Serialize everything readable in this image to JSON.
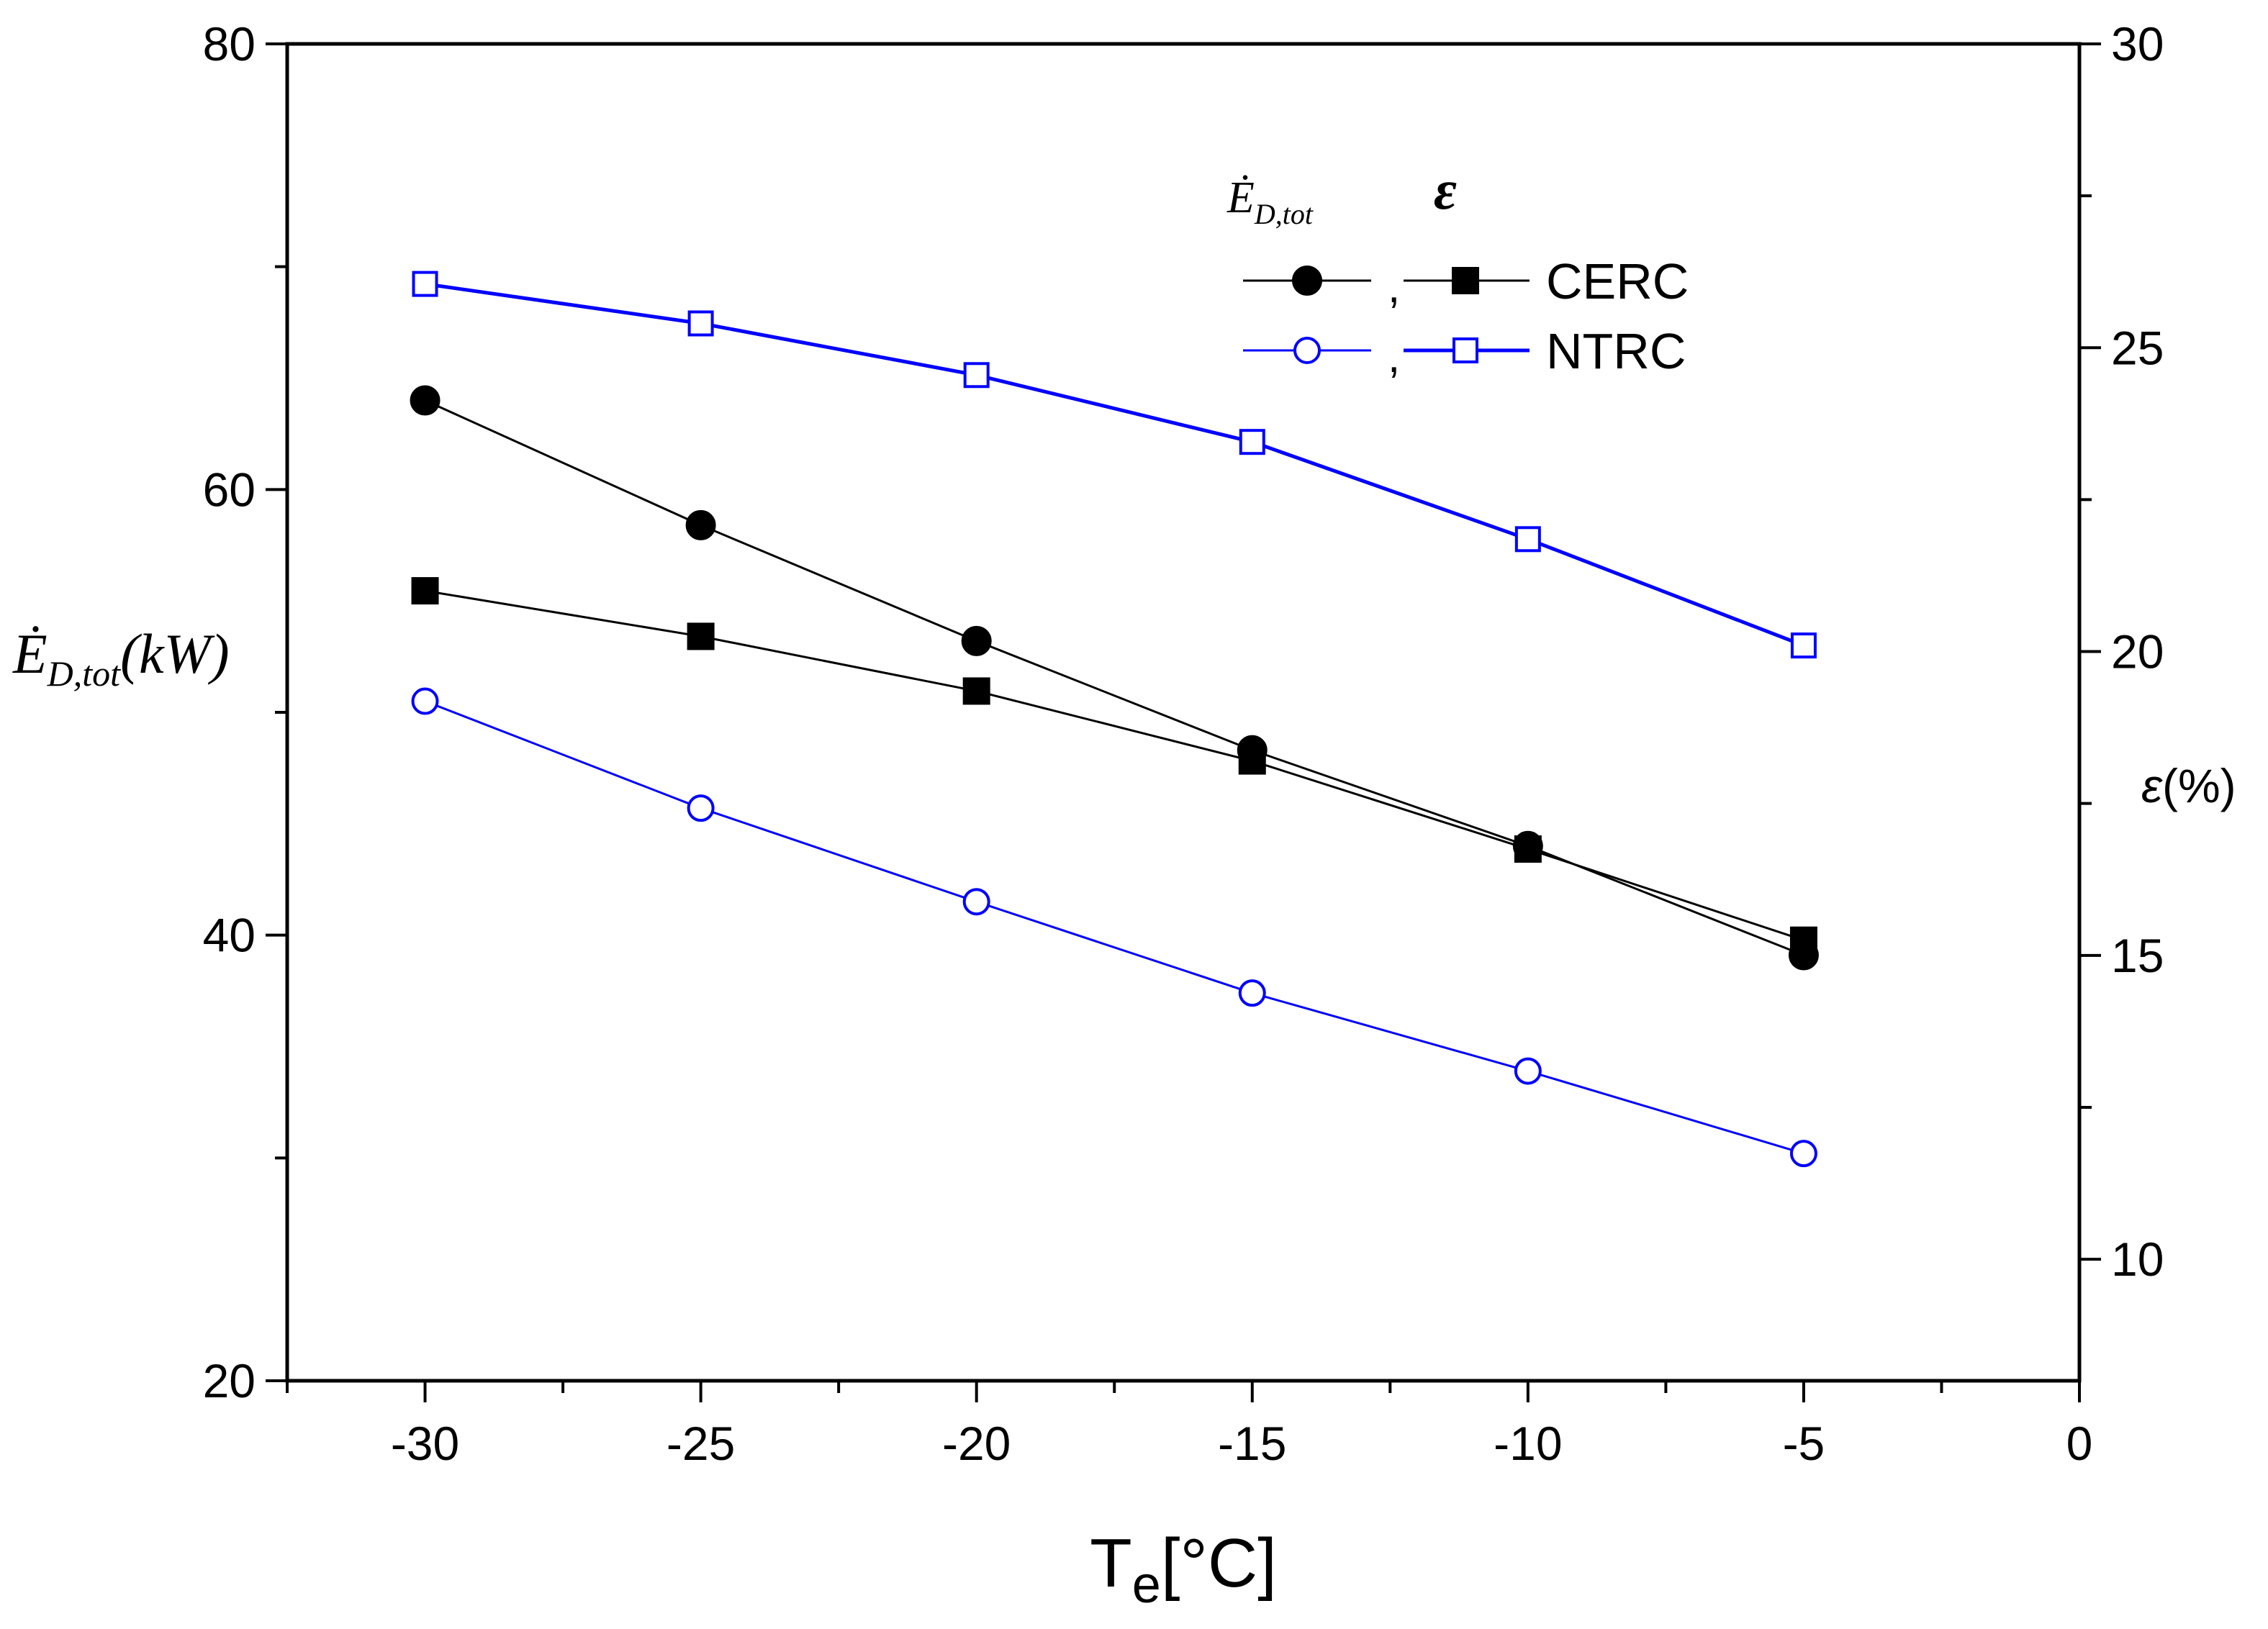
{
  "chart_data": {
    "type": "line",
    "x": [
      -30,
      -25,
      -20,
      -15,
      -10,
      -5
    ],
    "xlim": [
      -32.5,
      0
    ],
    "ylim_left": [
      20,
      80
    ],
    "ylim_right": [
      8,
      30
    ],
    "x_ticks": [
      "-30",
      "-25",
      "-20",
      "-15",
      "-10",
      "-5",
      "0"
    ],
    "y_left_ticks": [
      "20",
      "40",
      "60",
      "80"
    ],
    "y_right_ticks": [
      "10",
      "15",
      "20",
      "25",
      "30"
    ],
    "xlabel": {
      "main": "T",
      "sub": "e",
      "rest": "[°C]"
    },
    "ylabel_left": {
      "symbol": "Ė",
      "sub": "D,tot",
      "unit": "(kW)"
    },
    "ylabel_right": {
      "symbol": "ε",
      "unit": "(%)"
    },
    "legend": {
      "header_left": {
        "symbol": "Ė",
        "sub": "D,tot"
      },
      "header_right": "ε",
      "separator": ",",
      "entries": [
        "CERC",
        "NTRC"
      ]
    },
    "series": [
      {
        "name": "CERC Ė_D,tot",
        "axis": "left",
        "marker": "circle-filled",
        "color": "#000000",
        "values": [
          64.0,
          58.4,
          53.2,
          48.3,
          44.0,
          39.1
        ]
      },
      {
        "name": "CERC ε",
        "axis": "right",
        "marker": "square-filled",
        "color": "#000000",
        "values": [
          21.0,
          20.25,
          19.35,
          18.2,
          16.75,
          15.25
        ]
      },
      {
        "name": "NTRC Ė_D,tot",
        "axis": "left",
        "marker": "circle-open",
        "color": "#0000FF",
        "values": [
          50.5,
          45.7,
          41.5,
          37.4,
          33.9,
          30.2
        ]
      },
      {
        "name": "NTRC ε",
        "axis": "right",
        "marker": "square-open",
        "color": "#0000FF",
        "values": [
          26.05,
          25.4,
          24.55,
          23.45,
          21.85,
          20.1
        ]
      }
    ]
  }
}
